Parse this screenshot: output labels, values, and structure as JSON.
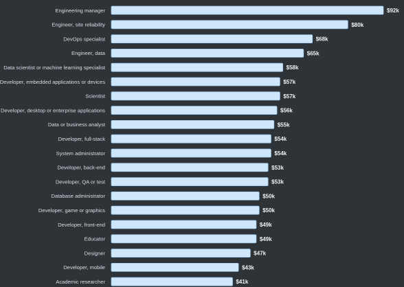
{
  "chart_data": {
    "type": "bar",
    "orientation": "horizontal",
    "title": "",
    "xlabel": "",
    "ylabel": "",
    "xlim": [
      0,
      92
    ],
    "value_unit": "thousand USD",
    "grid": false,
    "legend": "none",
    "categories": [
      "Engineering manager",
      "Engineer, site reliability",
      "DevOps specialist",
      "Engineer, data",
      "Data scientist or machine learning specialist",
      "Developer, embedded applications or devices",
      "Scientist",
      "Developer, desktop or enterprise applications",
      "Data or business analyst",
      "Developer, full-stack",
      "System administrator",
      "Developer, back-end",
      "Developer, QA or test",
      "Database administrator",
      "Developer, game or graphics",
      "Developer, front-end",
      "Educator",
      "Designer",
      "Developer, mobile",
      "Academic researcher"
    ],
    "values": [
      92,
      80,
      68,
      65,
      58,
      57,
      57,
      56,
      55,
      54,
      54,
      53,
      53,
      50,
      50,
      49,
      49,
      47,
      43,
      41
    ],
    "value_labels": [
      "$92k",
      "$80k",
      "$68k",
      "$65k",
      "$58k",
      "$57k",
      "$57k",
      "$56k",
      "$55k",
      "$54k",
      "$54k",
      "$53k",
      "$53k",
      "$50k",
      "$50k",
      "$49k",
      "$49k",
      "$47k",
      "$43k",
      "$41k"
    ],
    "colors": {
      "background": "#2e3338",
      "bar_fill": "#cfe7fb",
      "bar_stroke": "#9fc9ee",
      "label_text": "#d7dde3",
      "value_text": "#eef2f6"
    }
  }
}
